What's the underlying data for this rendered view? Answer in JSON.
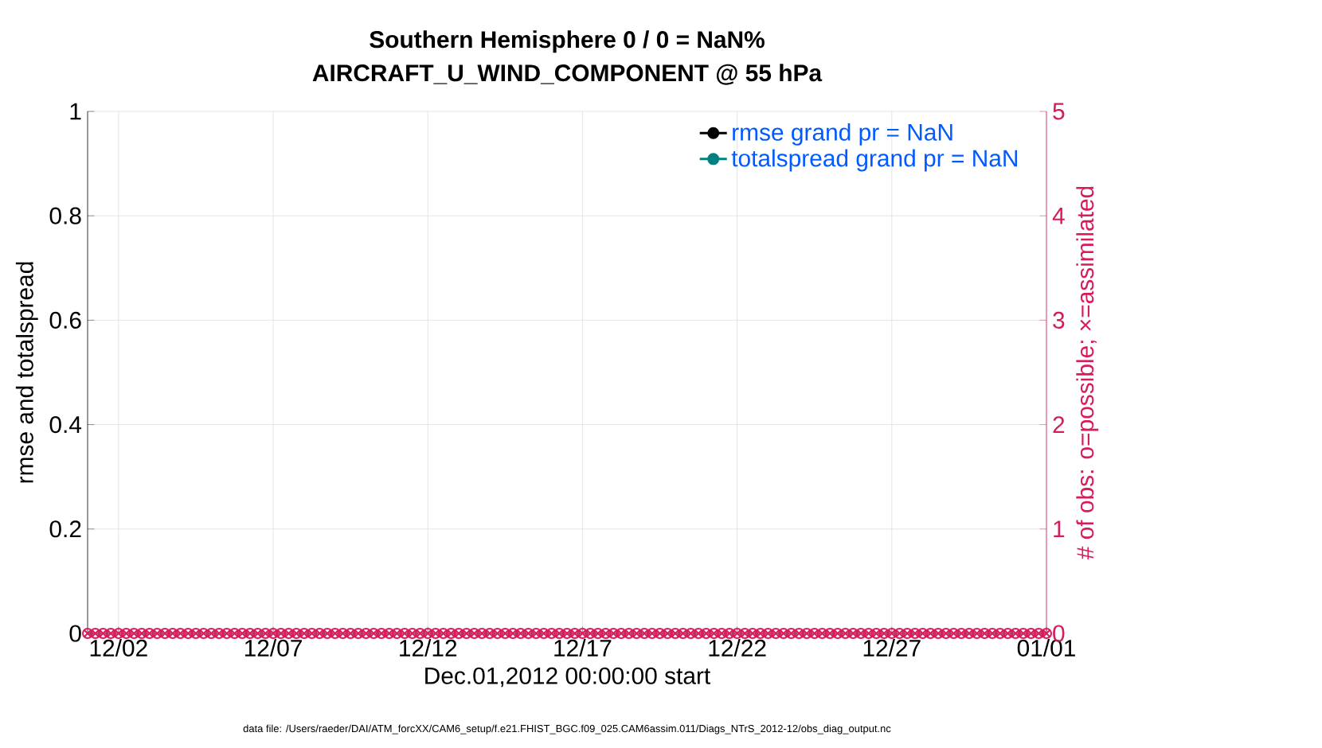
{
  "chart_data": {
    "type": "line",
    "title": "Southern Hemisphere 0 / 0 = NaN%",
    "subtitle": "AIRCRAFT_U_WIND_COMPONENT @ 55 hPa",
    "xlabel": "Dec.01,2012 00:00:00 start",
    "ylabel": "rmse and totalspread",
    "y2label": "# of obs: o=possible; ×=assimilated",
    "annotations": [
      "data file: /Users/raeder/DAI/ATM_forcXX/CAM6_setup/f.e21.FHIST_BGC.f09_025.CAM6assim.011/Diags_NTrS_2012-12/obs_diag_output.nc"
    ],
    "x": [
      "2012-12-01T00:00",
      "2012-12-01T06:00",
      "2012-12-01T12:00",
      "2012-12-01T18:00",
      "2012-12-02T00:00",
      "2012-12-02T06:00",
      "2012-12-02T12:00",
      "2012-12-02T18:00",
      "2012-12-03T00:00",
      "2012-12-03T06:00",
      "2012-12-03T12:00",
      "2012-12-03T18:00",
      "2012-12-04T00:00",
      "2012-12-04T06:00",
      "2012-12-04T12:00",
      "2012-12-04T18:00",
      "2012-12-05T00:00",
      "2012-12-05T06:00",
      "2012-12-05T12:00",
      "2012-12-05T18:00",
      "2012-12-06T00:00",
      "2012-12-06T06:00",
      "2012-12-06T12:00",
      "2012-12-06T18:00",
      "2012-12-07T00:00",
      "2012-12-07T06:00",
      "2012-12-07T12:00",
      "2012-12-07T18:00",
      "2012-12-08T00:00",
      "2012-12-08T06:00",
      "2012-12-08T12:00",
      "2012-12-08T18:00",
      "2012-12-09T00:00",
      "2012-12-09T06:00",
      "2012-12-09T12:00",
      "2012-12-09T18:00",
      "2012-12-10T00:00",
      "2012-12-10T06:00",
      "2012-12-10T12:00",
      "2012-12-10T18:00",
      "2012-12-11T00:00",
      "2012-12-11T06:00",
      "2012-12-11T12:00",
      "2012-12-11T18:00",
      "2012-12-12T00:00",
      "2012-12-12T06:00",
      "2012-12-12T12:00",
      "2012-12-12T18:00",
      "2012-12-13T00:00",
      "2012-12-13T06:00",
      "2012-12-13T12:00",
      "2012-12-13T18:00",
      "2012-12-14T00:00",
      "2012-12-14T06:00",
      "2012-12-14T12:00",
      "2012-12-14T18:00",
      "2012-12-15T00:00",
      "2012-12-15T06:00",
      "2012-12-15T12:00",
      "2012-12-15T18:00",
      "2012-12-16T00:00",
      "2012-12-16T06:00",
      "2012-12-16T12:00",
      "2012-12-16T18:00",
      "2012-12-17T00:00",
      "2012-12-17T06:00",
      "2012-12-17T12:00",
      "2012-12-17T18:00",
      "2012-12-18T00:00",
      "2012-12-18T06:00",
      "2012-12-18T12:00",
      "2012-12-18T18:00",
      "2012-12-19T00:00",
      "2012-12-19T06:00",
      "2012-12-19T12:00",
      "2012-12-19T18:00",
      "2012-12-20T00:00",
      "2012-12-20T06:00",
      "2012-12-20T12:00",
      "2012-12-20T18:00",
      "2012-12-21T00:00",
      "2012-12-21T06:00",
      "2012-12-21T12:00",
      "2012-12-21T18:00",
      "2012-12-22T00:00",
      "2012-12-22T06:00",
      "2012-12-22T12:00",
      "2012-12-22T18:00",
      "2012-12-23T00:00",
      "2012-12-23T06:00",
      "2012-12-23T12:00",
      "2012-12-23T18:00",
      "2012-12-24T00:00",
      "2012-12-24T06:00",
      "2012-12-24T12:00",
      "2012-12-24T18:00",
      "2012-12-25T00:00",
      "2012-12-25T06:00",
      "2012-12-25T12:00",
      "2012-12-25T18:00",
      "2012-12-26T00:00",
      "2012-12-26T06:00",
      "2012-12-26T12:00",
      "2012-12-26T18:00",
      "2012-12-27T00:00",
      "2012-12-27T06:00",
      "2012-12-27T12:00",
      "2012-12-27T18:00",
      "2012-12-28T00:00",
      "2012-12-28T06:00",
      "2012-12-28T12:00",
      "2012-12-28T18:00",
      "2012-12-29T00:00",
      "2012-12-29T06:00",
      "2012-12-29T12:00",
      "2012-12-29T18:00",
      "2012-12-30T00:00",
      "2012-12-30T06:00",
      "2012-12-30T12:00",
      "2012-12-30T18:00",
      "2012-12-31T00:00",
      "2012-12-31T06:00",
      "2012-12-31T12:00",
      "2012-12-31T18:00",
      "2013-01-01T00:00"
    ],
    "series": [
      {
        "name": "rmse grand pr = NaN",
        "color": "#000000",
        "marker": "circle",
        "values": [
          null,
          null,
          null,
          null,
          null,
          null,
          null,
          null,
          null,
          null,
          null,
          null,
          null,
          null,
          null,
          null,
          null,
          null,
          null,
          null,
          null,
          null,
          null,
          null,
          null,
          null,
          null,
          null,
          null,
          null,
          null,
          null,
          null,
          null,
          null,
          null,
          null,
          null,
          null,
          null,
          null,
          null,
          null,
          null,
          null,
          null,
          null,
          null,
          null,
          null,
          null,
          null,
          null,
          null,
          null,
          null,
          null,
          null,
          null,
          null,
          null,
          null,
          null,
          null,
          null,
          null,
          null,
          null,
          null,
          null,
          null,
          null,
          null,
          null,
          null,
          null,
          null,
          null,
          null,
          null,
          null,
          null,
          null,
          null,
          null,
          null,
          null,
          null,
          null,
          null,
          null,
          null,
          null,
          null,
          null,
          null,
          null,
          null,
          null,
          null,
          null,
          null,
          null,
          null,
          null,
          null,
          null,
          null,
          null,
          null,
          null,
          null,
          null,
          null,
          null,
          null,
          null,
          null,
          null,
          null,
          null,
          null,
          null,
          null,
          null
        ]
      },
      {
        "name": "totalspread grand pr = NaN",
        "color": "#008080",
        "marker": "circle",
        "values": [
          null,
          null,
          null,
          null,
          null,
          null,
          null,
          null,
          null,
          null,
          null,
          null,
          null,
          null,
          null,
          null,
          null,
          null,
          null,
          null,
          null,
          null,
          null,
          null,
          null,
          null,
          null,
          null,
          null,
          null,
          null,
          null,
          null,
          null,
          null,
          null,
          null,
          null,
          null,
          null,
          null,
          null,
          null,
          null,
          null,
          null,
          null,
          null,
          null,
          null,
          null,
          null,
          null,
          null,
          null,
          null,
          null,
          null,
          null,
          null,
          null,
          null,
          null,
          null,
          null,
          null,
          null,
          null,
          null,
          null,
          null,
          null,
          null,
          null,
          null,
          null,
          null,
          null,
          null,
          null,
          null,
          null,
          null,
          null,
          null,
          null,
          null,
          null,
          null,
          null,
          null,
          null,
          null,
          null,
          null,
          null,
          null,
          null,
          null,
          null,
          null,
          null,
          null,
          null,
          null,
          null,
          null,
          null,
          null,
          null,
          null,
          null,
          null,
          null,
          null,
          null,
          null,
          null,
          null,
          null,
          null,
          null,
          null,
          null,
          null
        ]
      },
      {
        "type": "scatter",
        "axis": "y2",
        "color": "#d81b5a",
        "marker": "circle",
        "values": [
          0,
          0,
          0,
          0,
          0,
          0,
          0,
          0,
          0,
          0,
          0,
          0,
          0,
          0,
          0,
          0,
          0,
          0,
          0,
          0,
          0,
          0,
          0,
          0,
          0,
          0,
          0,
          0,
          0,
          0,
          0,
          0,
          0,
          0,
          0,
          0,
          0,
          0,
          0,
          0,
          0,
          0,
          0,
          0,
          0,
          0,
          0,
          0,
          0,
          0,
          0,
          0,
          0,
          0,
          0,
          0,
          0,
          0,
          0,
          0,
          0,
          0,
          0,
          0,
          0,
          0,
          0,
          0,
          0,
          0,
          0,
          0,
          0,
          0,
          0,
          0,
          0,
          0,
          0,
          0,
          0,
          0,
          0,
          0,
          0,
          0,
          0,
          0,
          0,
          0,
          0,
          0,
          0,
          0,
          0,
          0,
          0,
          0,
          0,
          0,
          0,
          0,
          0,
          0,
          0,
          0,
          0,
          0,
          0,
          0,
          0,
          0,
          0,
          0,
          0,
          0,
          0,
          0,
          0,
          0,
          0,
          0,
          0,
          0,
          0
        ]
      },
      {
        "type": "scatter",
        "axis": "y2",
        "color": "#d81b5a",
        "marker": "cross",
        "values": [
          0,
          0,
          0,
          0,
          0,
          0,
          0,
          0,
          0,
          0,
          0,
          0,
          0,
          0,
          0,
          0,
          0,
          0,
          0,
          0,
          0,
          0,
          0,
          0,
          0,
          0,
          0,
          0,
          0,
          0,
          0,
          0,
          0,
          0,
          0,
          0,
          0,
          0,
          0,
          0,
          0,
          0,
          0,
          0,
          0,
          0,
          0,
          0,
          0,
          0,
          0,
          0,
          0,
          0,
          0,
          0,
          0,
          0,
          0,
          0,
          0,
          0,
          0,
          0,
          0,
          0,
          0,
          0,
          0,
          0,
          0,
          0,
          0,
          0,
          0,
          0,
          0,
          0,
          0,
          0,
          0,
          0,
          0,
          0,
          0,
          0,
          0,
          0,
          0,
          0,
          0,
          0,
          0,
          0,
          0,
          0,
          0,
          0,
          0,
          0,
          0,
          0,
          0,
          0,
          0,
          0,
          0,
          0,
          0,
          0,
          0,
          0,
          0,
          0,
          0,
          0,
          0,
          0,
          0,
          0,
          0,
          0,
          0,
          0,
          0
        ]
      }
    ],
    "xlim": [
      "2012-12-01T00:00",
      "2013-01-01T00:00"
    ],
    "xticks": [
      {
        "value": "2012-12-02T00:00",
        "label": "12/02"
      },
      {
        "value": "2012-12-07T00:00",
        "label": "12/07"
      },
      {
        "value": "2012-12-12T00:00",
        "label": "12/12"
      },
      {
        "value": "2012-12-17T00:00",
        "label": "12/17"
      },
      {
        "value": "2012-12-22T00:00",
        "label": "12/22"
      },
      {
        "value": "2012-12-27T00:00",
        "label": "12/27"
      },
      {
        "value": "2013-01-01T00:00",
        "label": "01/01"
      }
    ],
    "ylim": [
      0,
      1
    ],
    "yticks": [
      0,
      0.2,
      0.4,
      0.6,
      0.8,
      1
    ],
    "y2lim": [
      0,
      5
    ],
    "y2ticks": [
      0,
      1,
      2,
      3,
      4,
      5
    ],
    "grid": true,
    "legend": "top right"
  }
}
